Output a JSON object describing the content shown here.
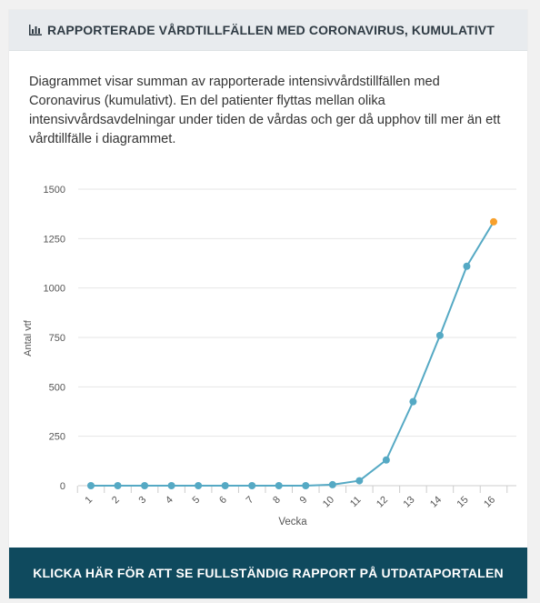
{
  "header": {
    "title": "RAPPORTERADE VÅRDTILLFÄLLEN MED CORONAVIRUS, KUMULATIVT",
    "icon": "bar-chart-icon"
  },
  "description": "Diagrammet visar summan av rapporterade intensivvårdstillfällen med Coronavirus (kumulativt). En del patienter flyttas mellan olika intensivvårdsavdelningar under tiden de vårdas och ger då upphov till mer än ett vårdtillfälle i diagrammet.",
  "cta": {
    "label": "KLICKA HÄR FÖR ATT SE FULLSTÄNDIG RAPPORT PÅ UTDATAPORTALEN"
  },
  "chart_data": {
    "type": "line",
    "title": "",
    "xlabel": "Vecka",
    "ylabel": "Antal vtf",
    "categories": [
      "1",
      "2",
      "3",
      "4",
      "5",
      "6",
      "7",
      "8",
      "9",
      "10",
      "11",
      "12",
      "13",
      "14",
      "15",
      "16"
    ],
    "values": [
      0,
      0,
      0,
      0,
      0,
      0,
      0,
      0,
      0,
      5,
      25,
      130,
      425,
      760,
      1110,
      1335
    ],
    "ylim": [
      0,
      1500
    ],
    "yticks": [
      0,
      250,
      500,
      750,
      1000,
      1250,
      1500
    ],
    "grid": true,
    "colors": {
      "line": "#55a9c4",
      "last_point": "#f7a02c",
      "grid": "#e6e6e6",
      "axis": "#cccccc"
    }
  }
}
